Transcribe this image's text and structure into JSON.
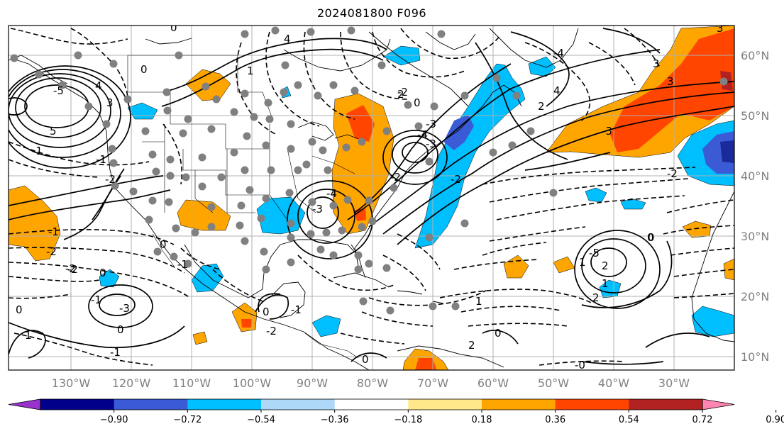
{
  "title": "2024081800 F096",
  "map": {
    "lon_labels": [
      "130°W",
      "120°W",
      "110°W",
      "100°W",
      "90°W",
      "80°W",
      "70°W",
      "60°W",
      "50°W",
      "40°W",
      "30°W"
    ],
    "lat_labels": [
      "60°N",
      "50°N",
      "40°N",
      "30°N",
      "20°N",
      "10°N"
    ],
    "contour_labels": [
      "0",
      "0",
      "1",
      "2",
      "3",
      "4",
      "5",
      "-5",
      "-4",
      "-3",
      "-2",
      "-1",
      "-2",
      "-3",
      "-4",
      "-5",
      "3",
      "4",
      "2",
      "0",
      "-3",
      "-4",
      "-2",
      "-1",
      "0",
      "-1",
      "0",
      "-3",
      "-2",
      "1",
      "2",
      "0",
      "1",
      "0",
      "-1",
      "0",
      "-1",
      "-2",
      "-2",
      "0",
      "1",
      "2",
      "-0",
      "0",
      "-2",
      "3",
      "4",
      "-3",
      "-2",
      "-1",
      "0",
      "-1",
      "-2",
      "0",
      "1",
      "2",
      "3"
    ],
    "shading_colors": {
      "warm_light": "#ffa500",
      "warm_mid": "#ff4500",
      "warm_dark": "#b22222",
      "cool_light": "#00bfff",
      "cool_mid": "#3b5bd6",
      "cool_dark": "#1a2a9a"
    }
  },
  "colorbar": {
    "tick_labels": [
      "−0.90",
      "−0.72",
      "−0.54",
      "−0.36",
      "−0.18",
      "0.18",
      "0.36",
      "0.54",
      "0.72",
      "0.90"
    ],
    "colors": [
      "#9932cc",
      "#00008b",
      "#3b5bd6",
      "#00bfff",
      "#add8f7",
      "#ffffff",
      "#ffe88a",
      "#ffa500",
      "#ff4500",
      "#b22222",
      "#ff85b3"
    ]
  }
}
